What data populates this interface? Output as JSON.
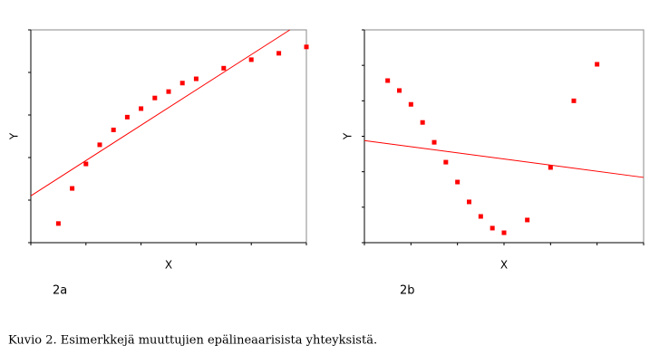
{
  "chart_data": [
    {
      "type": "scatter",
      "title": "2a",
      "x_label": "X",
      "y_label": "Y",
      "color": "#ff0000",
      "x": [
        1.0,
        1.5,
        2.0,
        2.5,
        3.0,
        3.5,
        4.0,
        4.5,
        5.0,
        5.5,
        6.0,
        7.0,
        8.0,
        9.0,
        10.0
      ],
      "values": [
        0.9,
        2.55,
        3.7,
        4.6,
        5.3,
        5.9,
        6.3,
        6.8,
        7.1,
        7.5,
        7.7,
        8.2,
        8.6,
        8.9,
        9.2
      ],
      "line": {
        "x": [
          0,
          9.4
        ],
        "y": [
          2.2,
          10
        ]
      },
      "xlim": [
        0,
        10
      ],
      "ylim": [
        0,
        10
      ],
      "xticks": [
        0,
        2,
        4,
        6,
        8,
        10
      ],
      "yticks": [
        0,
        2,
        4,
        6,
        8,
        10
      ]
    },
    {
      "type": "scatter",
      "title": "2b",
      "x_label": "X",
      "y_label": "Y",
      "color": "#ff0000",
      "x": [
        1.0,
        1.5,
        2.0,
        2.5,
        3.0,
        3.5,
        4.0,
        4.5,
        5.0,
        5.5,
        6.0,
        7.0,
        8.0,
        9.0,
        10.0
      ],
      "values": [
        4.57,
        4.29,
        3.9,
        3.39,
        2.83,
        2.27,
        1.71,
        1.15,
        0.74,
        0.41,
        0.28,
        0.64,
        2.12,
        4.0,
        5.03
      ],
      "line": {
        "x": [
          0,
          12
        ],
        "y": [
          2.88,
          1.84
        ]
      },
      "xlim": [
        0,
        12
      ],
      "ylim": [
        0,
        6
      ],
      "xticks": [
        0,
        2,
        4,
        6,
        8,
        10,
        12
      ],
      "yticks": [
        0,
        1,
        2,
        3,
        4,
        5,
        6
      ]
    }
  ],
  "caption": "Kuvio 2. Esimerkkejä muuttujien epälineaarisista yhteyksistä."
}
